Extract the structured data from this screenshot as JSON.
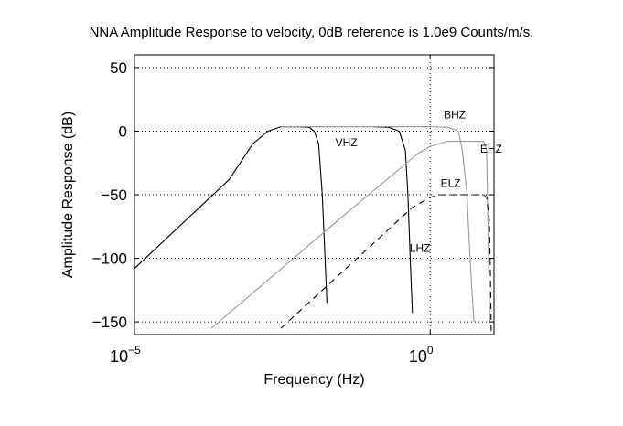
{
  "chart_data": {
    "type": "line",
    "title": "NNA Amplitude Response to velocity, 0dB reference is 1.0e9 Counts/m/s.",
    "xlabel": "Frequency (Hz)",
    "ylabel": "Amplitude Response (dB)",
    "xscale": "log",
    "xlim": [
      1e-05,
      12
    ],
    "ylim": [
      -160,
      60
    ],
    "xticks": [
      {
        "value": 1e-05,
        "base": "10",
        "exp": "−5"
      },
      {
        "value": 1,
        "base": "10",
        "exp": "0"
      }
    ],
    "yticks": [
      {
        "value": 50,
        "label": "50"
      },
      {
        "value": 0,
        "label": "0"
      },
      {
        "value": -50,
        "label": "−50"
      },
      {
        "value": -100,
        "label": "−100"
      },
      {
        "value": -150,
        "label": "−150"
      }
    ],
    "grid": "dotted",
    "series": [
      {
        "name": "VHZ",
        "color": "#000000",
        "dash": "solid",
        "x": [
          1e-05,
          0.0004,
          0.001,
          0.0018,
          0.003,
          0.006,
          0.009,
          0.011,
          0.013,
          0.015,
          0.018
        ],
        "y": [
          -108,
          -38,
          -10,
          0,
          3.5,
          3.5,
          3,
          0,
          -10,
          -50,
          -135
        ]
      },
      {
        "name": "LHZ",
        "color": "#000000",
        "dash": "solid",
        "x": [
          0.003,
          0.1,
          0.2,
          0.3,
          0.38,
          0.42,
          0.46,
          0.5
        ],
        "y": [
          3.5,
          3.5,
          3,
          0,
          -15,
          -50,
          -100,
          -143
        ]
      },
      {
        "name": "BHZ",
        "color": "#999999",
        "dash": "solid",
        "x": [
          0.003,
          0.3,
          1,
          2,
          3,
          3.5,
          4.2,
          4.6,
          5,
          5.5
        ],
        "y": [
          3.5,
          3.5,
          3.5,
          3,
          0,
          -15,
          -50,
          -90,
          -120,
          -150
        ]
      },
      {
        "name": "EHZ",
        "color": "#999999",
        "dash": "solid",
        "x": [
          0.0002,
          0.05,
          0.3,
          0.6,
          1,
          2,
          5,
          8,
          9,
          9.3,
          9.7,
          10.2
        ],
        "y": [
          -155,
          -60,
          -30,
          -18,
          -12,
          -8,
          -8,
          -8,
          -15,
          -50,
          -100,
          -150
        ]
      },
      {
        "name": "ELZ",
        "color": "#000000",
        "dash": "dashed",
        "x": [
          0.003,
          0.1,
          0.5,
          1,
          1.5,
          2,
          5,
          8,
          9,
          10,
          10.4,
          10.8
        ],
        "y": [
          -155,
          -90,
          -60,
          -52,
          -50,
          -50,
          -50,
          -50,
          -52,
          -70,
          -110,
          -160
        ]
      }
    ],
    "annotations": [
      {
        "text": "VHZ",
        "x": 0.025,
        "y": -12
      },
      {
        "text": "BHZ",
        "x": 1.7,
        "y": 10
      },
      {
        "text": "EHZ",
        "x": 7.0,
        "y": -17
      },
      {
        "text": "ELZ",
        "x": 1.5,
        "y": -44
      },
      {
        "text": "LHZ",
        "x": 0.45,
        "y": -95
      }
    ]
  }
}
